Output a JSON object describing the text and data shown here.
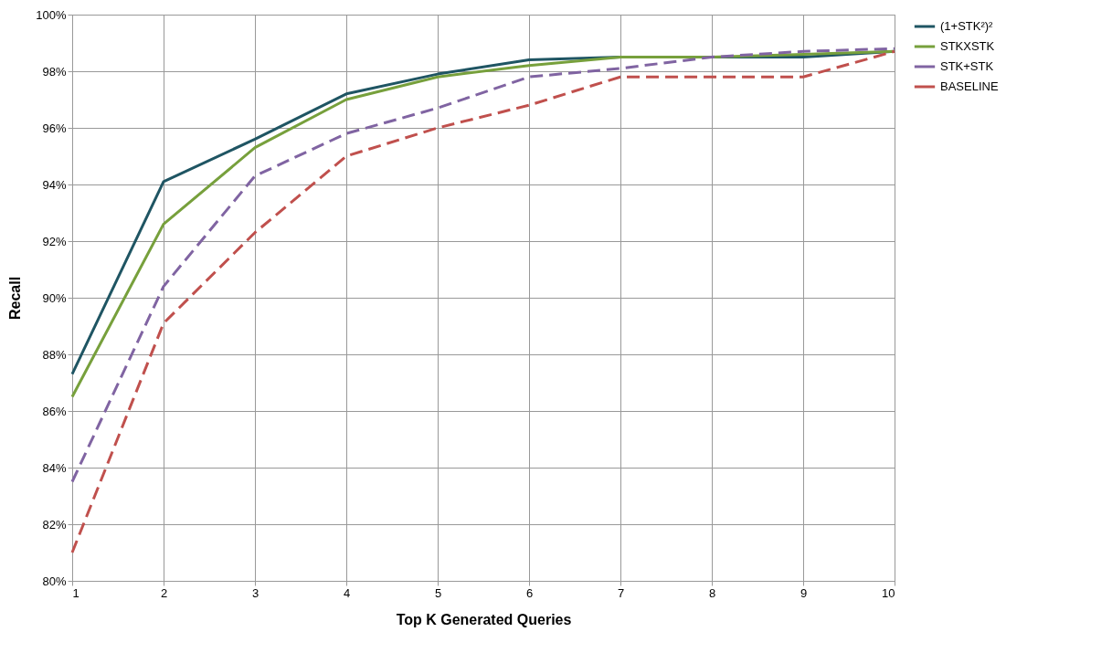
{
  "chart_data": {
    "type": "line",
    "xlabel": "Top K Generated Queries",
    "ylabel": "Recall",
    "x": [
      1,
      2,
      3,
      4,
      5,
      6,
      7,
      8,
      9,
      10
    ],
    "xlim": [
      1,
      10
    ],
    "xticks": [
      1,
      2,
      3,
      4,
      5,
      6,
      7,
      8,
      9,
      10
    ],
    "ylim": [
      80,
      100
    ],
    "yticks": [
      {
        "value": 80,
        "label": "80%"
      },
      {
        "value": 82,
        "label": "82%"
      },
      {
        "value": 84,
        "label": "84%"
      },
      {
        "value": 86,
        "label": "86%"
      },
      {
        "value": 88,
        "label": "88%"
      },
      {
        "value": 90,
        "label": "90%"
      },
      {
        "value": 92,
        "label": "92%"
      },
      {
        "value": 94,
        "label": "94%"
      },
      {
        "value": 96,
        "label": "96%"
      },
      {
        "value": 98,
        "label": "98%"
      },
      {
        "value": 100,
        "label": "100%"
      }
    ],
    "grid": true,
    "legend": "right",
    "marker": "none",
    "series": [
      {
        "name": "(1+STK²)²",
        "color": "#1f5563",
        "line_style": "solid",
        "values": [
          87.3,
          94.1,
          95.6,
          97.2,
          97.9,
          98.4,
          98.5,
          98.5,
          98.5,
          98.7
        ]
      },
      {
        "name": "STKXSTK",
        "color": "#77a03c",
        "line_style": "solid",
        "values": [
          86.5,
          92.6,
          95.3,
          97.0,
          97.8,
          98.2,
          98.5,
          98.5,
          98.6,
          98.7
        ]
      },
      {
        "name": "STK+STK",
        "color": "#8064a2",
        "line_style": "dashed",
        "values": [
          83.5,
          90.4,
          94.3,
          95.8,
          96.7,
          97.8,
          98.1,
          98.5,
          98.7,
          98.8
        ]
      },
      {
        "name": "BASELINE",
        "color": "#c0504d",
        "line_style": "dashed",
        "values": [
          81.0,
          89.1,
          92.3,
          95.0,
          96.0,
          96.8,
          97.8,
          97.8,
          97.8,
          98.7
        ]
      }
    ]
  }
}
